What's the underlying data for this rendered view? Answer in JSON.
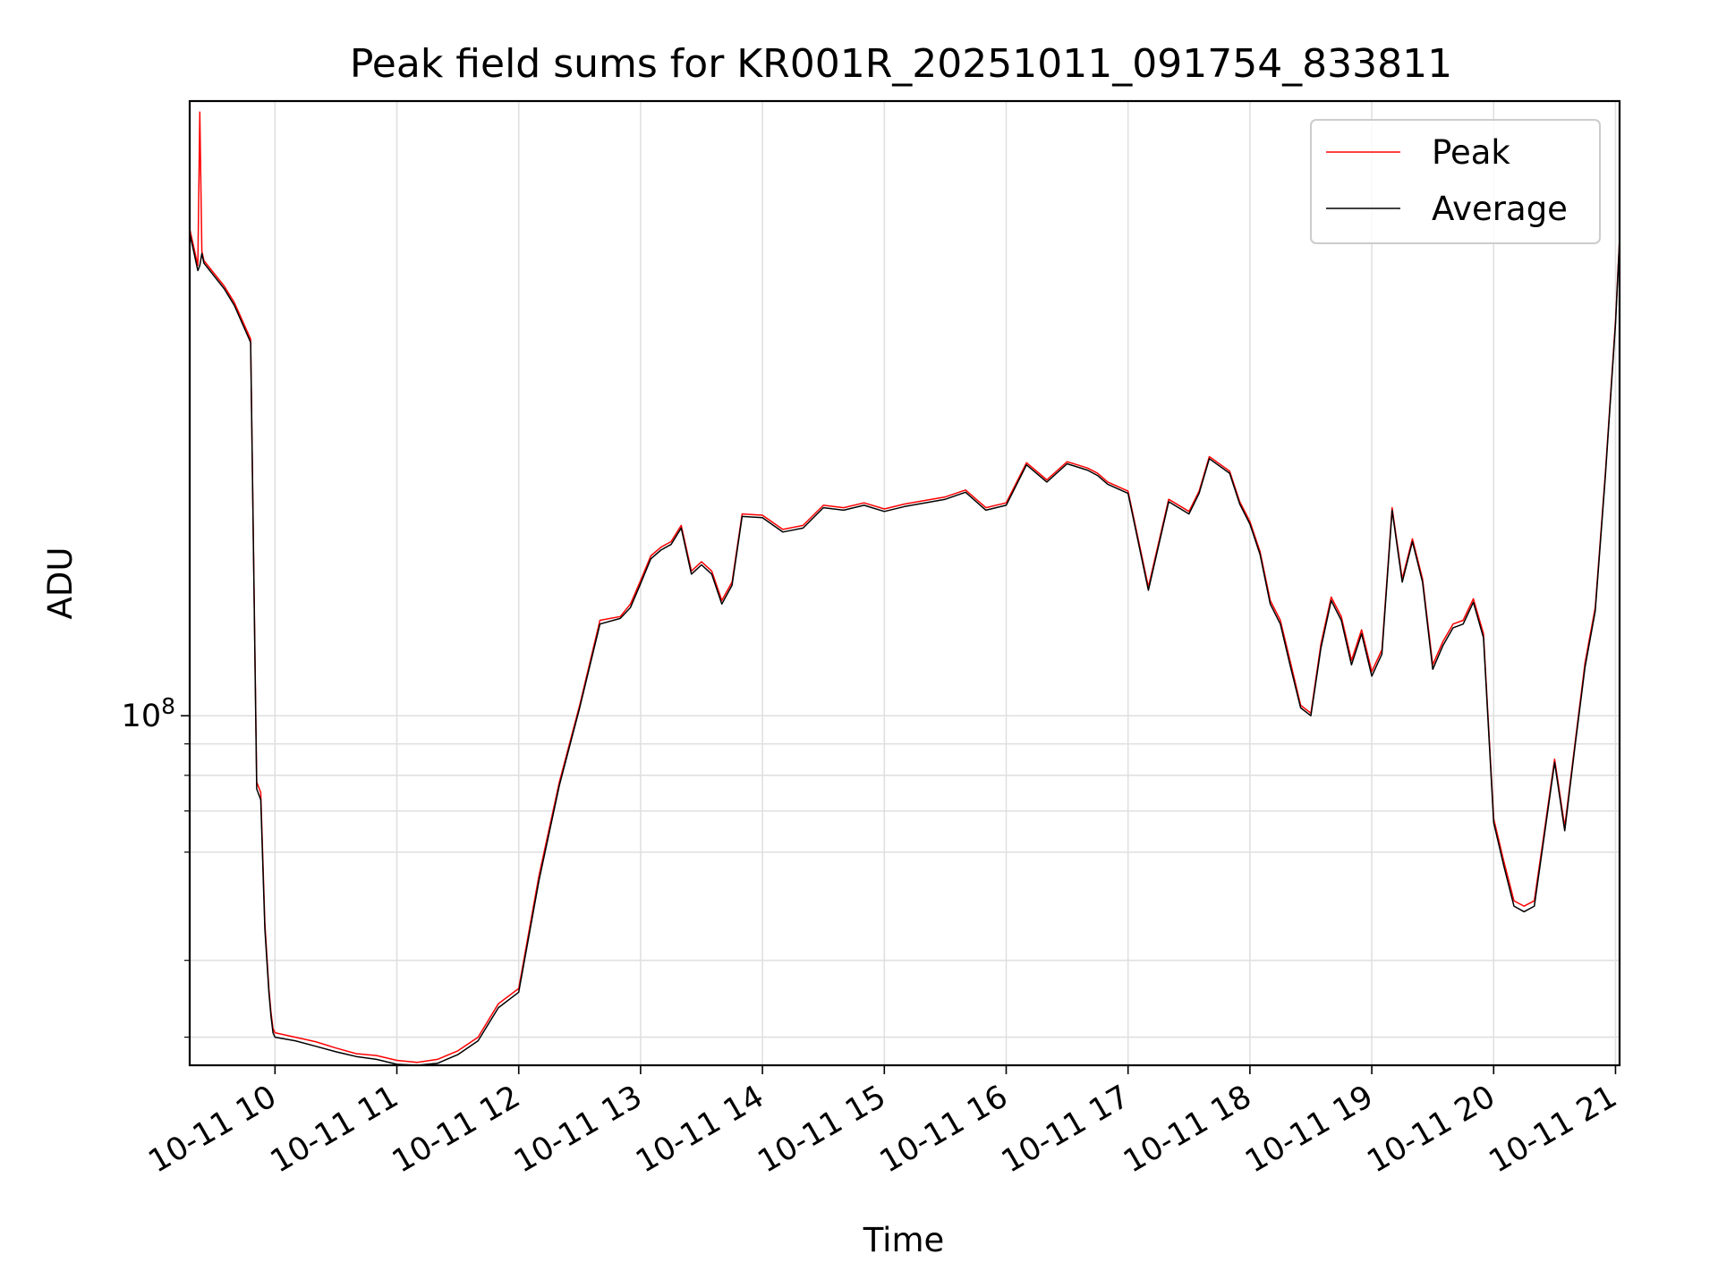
{
  "chart_data": {
    "type": "line",
    "title": "Peak field sums for KR001R_20251011_091754_833811",
    "xlabel": "Time",
    "ylabel": "ADU",
    "y_scale": "log",
    "grid": true,
    "legend_position": "top-right",
    "xlim": [
      "2025-10-11 09:18",
      "2025-10-11 21:02"
    ],
    "ylim": [
      27000000,
      1000000000
    ],
    "x_tick_labels": [
      "10-11 10",
      "10-11 11",
      "10-11 12",
      "10-11 13",
      "10-11 14",
      "10-11 15",
      "10-11 16",
      "10-11 17",
      "10-11 18",
      "10-11 19",
      "10-11 20",
      "10-11 21"
    ],
    "y_tick_labels": [
      {
        "value": 100000000,
        "base": "10",
        "exp": "8"
      }
    ],
    "series": [
      {
        "name": "Peak",
        "color": "#ff0000",
        "x": [
          "09:18",
          "09:22",
          "09:23",
          "09:24",
          "09:25",
          "09:35",
          "09:40",
          "09:48",
          "09:51",
          "09:53",
          "09:55",
          "09:57",
          "09:58",
          "09:59",
          "10:00",
          "10:10",
          "10:20",
          "10:30",
          "10:40",
          "10:50",
          "11:00",
          "11:10",
          "11:20",
          "11:30",
          "11:40",
          "11:50",
          "12:00",
          "12:10",
          "12:20",
          "12:30",
          "12:40",
          "12:50",
          "12:55",
          "13:00",
          "13:05",
          "13:10",
          "13:15",
          "13:20",
          "13:25",
          "13:30",
          "13:35",
          "13:40",
          "13:45",
          "13:50",
          "14:00",
          "14:10",
          "14:20",
          "14:30",
          "14:40",
          "14:50",
          "15:00",
          "15:10",
          "15:20",
          "15:30",
          "15:40",
          "15:50",
          "16:00",
          "16:10",
          "16:20",
          "16:30",
          "16:40",
          "16:45",
          "16:50",
          "17:00",
          "17:10",
          "17:20",
          "17:30",
          "17:35",
          "17:40",
          "17:50",
          "17:55",
          "18:00",
          "18:05",
          "18:10",
          "18:15",
          "18:20",
          "18:25",
          "18:30",
          "18:35",
          "18:40",
          "18:45",
          "18:50",
          "18:55",
          "19:00",
          "19:05",
          "19:10",
          "19:15",
          "19:20",
          "19:25",
          "19:30",
          "19:35",
          "19:40",
          "19:45",
          "19:50",
          "19:55",
          "20:00",
          "20:05",
          "20:10",
          "20:15",
          "20:20",
          "20:25",
          "20:30",
          "20:35",
          "20:40",
          "20:45",
          "20:50",
          "20:55",
          "21:00",
          "21:02"
        ],
        "values": [
          620000000,
          540000000,
          960000000,
          570000000,
          550000000,
          500000000,
          470000000,
          410000000,
          78000000,
          75000000,
          46000000,
          36000000,
          33000000,
          31000000,
          30500000,
          30000000,
          29500000,
          28800000,
          28200000,
          28000000,
          27500000,
          27300000,
          27600000,
          28500000,
          30000000,
          34000000,
          36000000,
          55000000,
          78000000,
          104000000,
          143000000,
          145000000,
          152000000,
          166000000,
          182000000,
          188000000,
          192000000,
          204000000,
          172000000,
          178000000,
          172000000,
          154000000,
          165000000,
          213000000,
          212000000,
          201000000,
          204000000,
          220000000,
          218000000,
          222000000,
          217000000,
          221000000,
          224000000,
          227000000,
          233000000,
          218000000,
          222000000,
          258000000,
          242000000,
          259000000,
          253000000,
          248000000,
          240000000,
          232000000,
          162000000,
          225000000,
          215000000,
          232000000,
          264000000,
          250000000,
          223000000,
          207000000,
          185000000,
          154000000,
          143000000,
          122000000,
          104000000,
          101000000,
          131000000,
          156000000,
          145000000,
          123000000,
          138000000,
          118000000,
          128000000,
          218000000,
          167000000,
          194000000,
          167000000,
          121000000,
          132000000,
          141000000,
          143000000,
          155000000,
          136000000,
          68000000,
          58000000,
          50000000,
          49000000,
          50000000,
          65000000,
          85000000,
          66000000,
          90000000,
          122000000,
          150000000,
          248000000,
          440000000,
          600000000
        ]
      },
      {
        "name": "Average",
        "color": "#000000",
        "x": [
          "09:18",
          "09:22",
          "09:23",
          "09:24",
          "09:25",
          "09:35",
          "09:40",
          "09:48",
          "09:51",
          "09:53",
          "09:55",
          "09:57",
          "09:58",
          "09:59",
          "10:00",
          "10:10",
          "10:20",
          "10:30",
          "10:40",
          "10:50",
          "11:00",
          "11:10",
          "11:20",
          "11:30",
          "11:40",
          "11:50",
          "12:00",
          "12:10",
          "12:20",
          "12:30",
          "12:40",
          "12:50",
          "12:55",
          "13:00",
          "13:05",
          "13:10",
          "13:15",
          "13:20",
          "13:25",
          "13:30",
          "13:35",
          "13:40",
          "13:45",
          "13:50",
          "14:00",
          "14:10",
          "14:20",
          "14:30",
          "14:40",
          "14:50",
          "15:00",
          "15:10",
          "15:20",
          "15:30",
          "15:40",
          "15:50",
          "16:00",
          "16:10",
          "16:20",
          "16:30",
          "16:40",
          "16:45",
          "16:50",
          "17:00",
          "17:10",
          "17:20",
          "17:30",
          "17:35",
          "17:40",
          "17:50",
          "17:55",
          "18:00",
          "18:05",
          "18:10",
          "18:15",
          "18:20",
          "18:25",
          "18:30",
          "18:35",
          "18:40",
          "18:45",
          "18:50",
          "18:55",
          "19:00",
          "19:05",
          "19:10",
          "19:15",
          "19:20",
          "19:25",
          "19:30",
          "19:35",
          "19:40",
          "19:45",
          "19:50",
          "19:55",
          "20:00",
          "20:05",
          "20:10",
          "20:15",
          "20:20",
          "20:25",
          "20:30",
          "20:35",
          "20:40",
          "20:45",
          "20:50",
          "20:55",
          "21:00",
          "21:02"
        ],
        "values": [
          610000000,
          530000000,
          540000000,
          565000000,
          545000000,
          495000000,
          465000000,
          405000000,
          76000000,
          73000000,
          45000000,
          35500000,
          32500000,
          30500000,
          30000000,
          29600000,
          29000000,
          28400000,
          27900000,
          27600000,
          27100000,
          26900000,
          27200000,
          28100000,
          29600000,
          33500000,
          35500000,
          54000000,
          77000000,
          103000000,
          141000000,
          144000000,
          150000000,
          164000000,
          180000000,
          186000000,
          190000000,
          202000000,
          170000000,
          176000000,
          170000000,
          152000000,
          163000000,
          211000000,
          210000000,
          199000000,
          202000000,
          218000000,
          216000000,
          220000000,
          215000000,
          219000000,
          222000000,
          225000000,
          231000000,
          216000000,
          220000000,
          256000000,
          240000000,
          257000000,
          251000000,
          246000000,
          238000000,
          230000000,
          160000000,
          223000000,
          213000000,
          230000000,
          262000000,
          248000000,
          221000000,
          205000000,
          183000000,
          152000000,
          141000000,
          120000000,
          103000000,
          100000000,
          129000000,
          154000000,
          143000000,
          121000000,
          136000000,
          116000000,
          126000000,
          216000000,
          165000000,
          192000000,
          165000000,
          119000000,
          130000000,
          139000000,
          141000000,
          153000000,
          134000000,
          67000000,
          57000000,
          49000000,
          48000000,
          49000000,
          64000000,
          84000000,
          65000000,
          89000000,
          120000000,
          148000000,
          245000000,
          435000000,
          595000000
        ]
      }
    ]
  }
}
